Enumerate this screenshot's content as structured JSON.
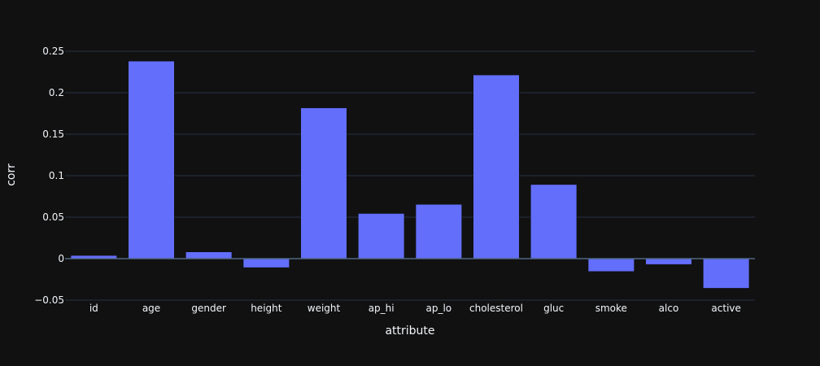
{
  "chart_data": {
    "type": "bar",
    "categories": [
      "id",
      "age",
      "gender",
      "height",
      "weight",
      "ap_hi",
      "ap_lo",
      "cholesterol",
      "gluc",
      "smoke",
      "alco",
      "active"
    ],
    "values": [
      0.0038,
      0.2381,
      0.0081,
      -0.0108,
      0.1817,
      0.0544,
      0.0654,
      0.2214,
      0.0893,
      -0.0155,
      -0.007,
      -0.0357
    ],
    "xlabel": "attribute",
    "ylabel": "corr",
    "ylim": [
      -0.05,
      0.25
    ],
    "yticks": [
      -0.05,
      0,
      0.05,
      0.1,
      0.15,
      0.2,
      0.25
    ],
    "ytick_labels": [
      "−0.05",
      "0",
      "0.05",
      "0.1",
      "0.15",
      "0.2",
      "0.25"
    ],
    "grid": true,
    "colors": {
      "background": "#111111",
      "bar": "#636efa",
      "text": "#f2f5fa",
      "grid": "#283442",
      "zero_line": "#506784"
    }
  }
}
